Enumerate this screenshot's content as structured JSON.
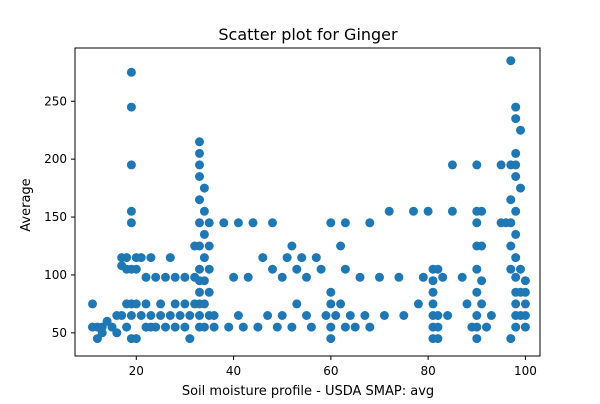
{
  "chart_data": {
    "type": "scatter",
    "title": "Scatter plot for Ginger",
    "xlabel": "Soil moisture profile - USDA SMAP: avg",
    "ylabel": "Average",
    "xlim": [
      7.4,
      103.0
    ],
    "ylim": [
      30,
      296
    ],
    "x_ticks": [
      20,
      40,
      60,
      80,
      100
    ],
    "y_ticks": [
      50,
      100,
      150,
      200,
      250
    ],
    "grid": false,
    "marker_color": "#1f77b4",
    "points": [
      [
        11,
        75
      ],
      [
        11,
        55
      ],
      [
        12,
        55
      ],
      [
        12,
        45
      ],
      [
        13,
        50
      ],
      [
        13,
        55
      ],
      [
        14,
        60
      ],
      [
        15,
        55
      ],
      [
        16,
        65
      ],
      [
        16,
        50
      ],
      [
        17,
        65
      ],
      [
        17,
        115
      ],
      [
        17,
        108
      ],
      [
        18,
        115
      ],
      [
        18,
        105
      ],
      [
        18,
        75
      ],
      [
        18,
        55
      ],
      [
        19,
        105
      ],
      [
        19,
        75
      ],
      [
        19,
        145
      ],
      [
        19,
        155
      ],
      [
        19,
        195
      ],
      [
        19,
        245
      ],
      [
        19,
        275
      ],
      [
        19,
        45
      ],
      [
        19,
        65
      ],
      [
        20,
        115
      ],
      [
        20,
        105
      ],
      [
        20,
        75
      ],
      [
        20,
        45
      ],
      [
        21,
        65
      ],
      [
        21,
        115
      ],
      [
        22,
        98
      ],
      [
        22,
        75
      ],
      [
        22,
        55
      ],
      [
        23,
        65
      ],
      [
        23,
        55
      ],
      [
        23,
        115
      ],
      [
        24,
        98
      ],
      [
        24,
        55
      ],
      [
        25,
        75
      ],
      [
        25,
        65
      ],
      [
        26,
        98
      ],
      [
        26,
        55
      ],
      [
        27,
        65
      ],
      [
        27,
        115
      ],
      [
        28,
        98
      ],
      [
        28,
        75
      ],
      [
        28,
        55
      ],
      [
        29,
        65
      ],
      [
        30,
        98
      ],
      [
        30,
        75
      ],
      [
        30,
        55
      ],
      [
        31,
        65
      ],
      [
        31,
        45
      ],
      [
        32,
        125
      ],
      [
        32,
        98
      ],
      [
        32,
        75
      ],
      [
        33,
        205
      ],
      [
        33,
        195
      ],
      [
        33,
        185
      ],
      [
        33,
        165
      ],
      [
        33,
        145
      ],
      [
        33,
        125
      ],
      [
        33,
        105
      ],
      [
        33,
        95
      ],
      [
        33,
        85
      ],
      [
        33,
        75
      ],
      [
        33,
        65
      ],
      [
        33,
        55
      ],
      [
        33,
        215
      ],
      [
        34,
        175
      ],
      [
        34,
        155
      ],
      [
        34,
        135
      ],
      [
        34,
        115
      ],
      [
        34,
        95
      ],
      [
        34,
        75
      ],
      [
        34,
        55
      ],
      [
        35,
        145
      ],
      [
        35,
        125
      ],
      [
        35,
        105
      ],
      [
        35,
        85
      ],
      [
        35,
        65
      ],
      [
        36,
        65
      ],
      [
        36,
        55
      ],
      [
        38,
        145
      ],
      [
        39,
        55
      ],
      [
        40,
        98
      ],
      [
        41,
        145
      ],
      [
        41,
        65
      ],
      [
        42,
        55
      ],
      [
        43,
        98
      ],
      [
        44,
        145
      ],
      [
        45,
        55
      ],
      [
        46,
        115
      ],
      [
        47,
        65
      ],
      [
        48,
        145
      ],
      [
        48,
        105
      ],
      [
        49,
        55
      ],
      [
        50,
        98
      ],
      [
        50,
        65
      ],
      [
        51,
        115
      ],
      [
        52,
        125
      ],
      [
        52,
        55
      ],
      [
        53,
        105
      ],
      [
        53,
        75
      ],
      [
        54,
        115
      ],
      [
        55,
        98
      ],
      [
        55,
        65
      ],
      [
        56,
        55
      ],
      [
        57,
        115
      ],
      [
        58,
        105
      ],
      [
        59,
        65
      ],
      [
        60,
        145
      ],
      [
        60,
        85
      ],
      [
        60,
        75
      ],
      [
        60,
        55
      ],
      [
        60,
        45
      ],
      [
        61,
        65
      ],
      [
        62,
        125
      ],
      [
        62,
        75
      ],
      [
        63,
        145
      ],
      [
        63,
        105
      ],
      [
        63,
        55
      ],
      [
        64,
        65
      ],
      [
        65,
        55
      ],
      [
        66,
        98
      ],
      [
        67,
        65
      ],
      [
        68,
        145
      ],
      [
        68,
        55
      ],
      [
        70,
        98
      ],
      [
        71,
        65
      ],
      [
        72,
        155
      ],
      [
        74,
        98
      ],
      [
        75,
        65
      ],
      [
        77,
        155
      ],
      [
        78,
        75
      ],
      [
        79,
        98
      ],
      [
        80,
        155
      ],
      [
        81,
        105
      ],
      [
        81,
        95
      ],
      [
        81,
        85
      ],
      [
        81,
        75
      ],
      [
        81,
        65
      ],
      [
        81,
        55
      ],
      [
        81,
        45
      ],
      [
        82,
        105
      ],
      [
        82,
        65
      ],
      [
        82,
        55
      ],
      [
        82,
        45
      ],
      [
        83,
        98
      ],
      [
        84,
        65
      ],
      [
        85,
        195
      ],
      [
        85,
        155
      ],
      [
        87,
        98
      ],
      [
        88,
        75
      ],
      [
        89,
        55
      ],
      [
        90,
        195
      ],
      [
        90,
        155
      ],
      [
        90,
        145
      ],
      [
        90,
        125
      ],
      [
        90,
        105
      ],
      [
        90,
        85
      ],
      [
        90,
        65
      ],
      [
        90,
        55
      ],
      [
        90,
        45
      ],
      [
        91,
        155
      ],
      [
        91,
        125
      ],
      [
        91,
        95
      ],
      [
        91,
        75
      ],
      [
        92,
        55
      ],
      [
        93,
        65
      ],
      [
        95,
        145
      ],
      [
        95,
        195
      ],
      [
        96,
        145
      ],
      [
        97,
        285
      ],
      [
        97,
        195
      ],
      [
        97,
        165
      ],
      [
        97,
        145
      ],
      [
        97,
        125
      ],
      [
        97,
        105
      ],
      [
        97,
        45
      ],
      [
        98,
        245
      ],
      [
        98,
        235
      ],
      [
        98,
        205
      ],
      [
        98,
        195
      ],
      [
        98,
        185
      ],
      [
        98,
        155
      ],
      [
        98,
        135
      ],
      [
        98,
        115
      ],
      [
        98,
        98
      ],
      [
        98,
        85
      ],
      [
        98,
        75
      ],
      [
        98,
        65
      ],
      [
        98,
        55
      ],
      [
        99,
        225
      ],
      [
        99,
        175
      ],
      [
        99,
        105
      ],
      [
        99,
        85
      ],
      [
        99,
        65
      ],
      [
        100,
        95
      ],
      [
        100,
        85
      ],
      [
        100,
        75
      ],
      [
        100,
        65
      ],
      [
        100,
        55
      ]
    ]
  }
}
